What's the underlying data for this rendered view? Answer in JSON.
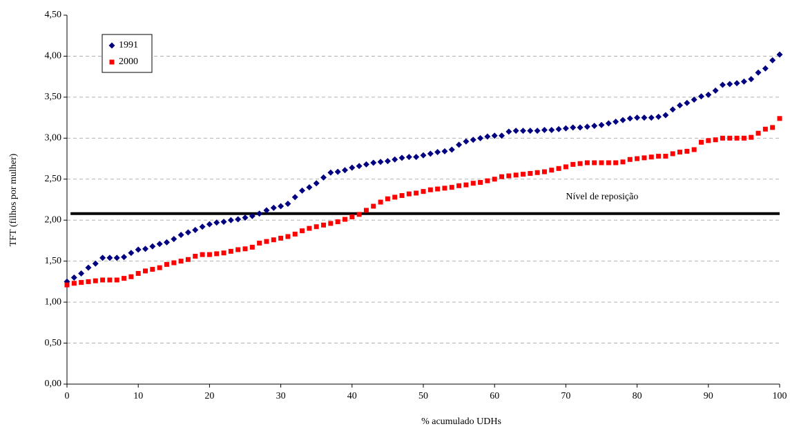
{
  "chart_data": {
    "type": "scatter",
    "xlabel": "% acumulado UDHs",
    "ylabel": "TFT (filhos por mulher)",
    "xlim": [
      0,
      100
    ],
    "xticks": [
      0,
      10,
      20,
      30,
      40,
      50,
      60,
      70,
      80,
      90,
      100
    ],
    "ylim": [
      0,
      4.5
    ],
    "yticks": [
      {
        "value": 0,
        "label": "0,00"
      },
      {
        "value": 0.5,
        "label": "0,50"
      },
      {
        "value": 1,
        "label": "1,00"
      },
      {
        "value": 1.5,
        "label": "1,50"
      },
      {
        "value": 2,
        "label": "2,00"
      },
      {
        "value": 2.5,
        "label": "2,50"
      },
      {
        "value": 3,
        "label": "3,00"
      },
      {
        "value": 3.5,
        "label": "3,50"
      },
      {
        "value": 4,
        "label": "4,00"
      },
      {
        "value": 4.5,
        "label": "4,50"
      }
    ],
    "grid": true,
    "legend": "upper left",
    "x": [
      0,
      1,
      2,
      3,
      4,
      5,
      6,
      7,
      8,
      9,
      10,
      11,
      12,
      13,
      14,
      15,
      16,
      17,
      18,
      19,
      20,
      21,
      22,
      23,
      24,
      25,
      26,
      27,
      28,
      29,
      30,
      31,
      32,
      33,
      34,
      35,
      36,
      37,
      38,
      39,
      40,
      41,
      42,
      43,
      44,
      45,
      46,
      47,
      48,
      49,
      50,
      51,
      52,
      53,
      54,
      55,
      56,
      57,
      58,
      59,
      60,
      61,
      62,
      63,
      64,
      65,
      66,
      67,
      68,
      69,
      70,
      71,
      72,
      73,
      74,
      75,
      76,
      77,
      78,
      79,
      80,
      81,
      82,
      83,
      84,
      85,
      86,
      87,
      88,
      89,
      90,
      91,
      92,
      93,
      94,
      95,
      96,
      97,
      98,
      99,
      100
    ],
    "series": [
      {
        "name": "1991",
        "color": "#000080",
        "marker": "diamond",
        "values": [
          1.25,
          1.3,
          1.35,
          1.42,
          1.47,
          1.54,
          1.54,
          1.54,
          1.55,
          1.6,
          1.64,
          1.65,
          1.68,
          1.71,
          1.73,
          1.77,
          1.82,
          1.85,
          1.88,
          1.92,
          1.95,
          1.97,
          1.98,
          2.0,
          2.01,
          2.03,
          2.05,
          2.08,
          2.12,
          2.15,
          2.17,
          2.2,
          2.28,
          2.36,
          2.4,
          2.45,
          2.52,
          2.58,
          2.59,
          2.61,
          2.64,
          2.66,
          2.68,
          2.7,
          2.71,
          2.72,
          2.74,
          2.76,
          2.77,
          2.77,
          2.79,
          2.81,
          2.83,
          2.84,
          2.86,
          2.92,
          2.96,
          2.98,
          3.0,
          3.02,
          3.03,
          3.03,
          3.08,
          3.09,
          3.09,
          3.09,
          3.09,
          3.1,
          3.1,
          3.11,
          3.12,
          3.13,
          3.13,
          3.14,
          3.15,
          3.16,
          3.18,
          3.2,
          3.22,
          3.24,
          3.25,
          3.25,
          3.25,
          3.26,
          3.28,
          3.35,
          3.4,
          3.43,
          3.47,
          3.51,
          3.53,
          3.58,
          3.65,
          3.66,
          3.67,
          3.69,
          3.72,
          3.8,
          3.85,
          3.95,
          4.02
        ]
      },
      {
        "name": "2000",
        "color": "#ff0000",
        "marker": "square",
        "values": [
          1.21,
          1.23,
          1.24,
          1.25,
          1.26,
          1.27,
          1.27,
          1.27,
          1.29,
          1.31,
          1.35,
          1.38,
          1.4,
          1.42,
          1.46,
          1.48,
          1.5,
          1.52,
          1.56,
          1.58,
          1.58,
          1.59,
          1.6,
          1.62,
          1.64,
          1.65,
          1.67,
          1.72,
          1.74,
          1.76,
          1.78,
          1.8,
          1.83,
          1.87,
          1.9,
          1.92,
          1.94,
          1.96,
          1.98,
          2.01,
          2.04,
          2.07,
          2.12,
          2.17,
          2.22,
          2.26,
          2.28,
          2.3,
          2.32,
          2.33,
          2.35,
          2.37,
          2.38,
          2.39,
          2.4,
          2.42,
          2.43,
          2.45,
          2.46,
          2.48,
          2.5,
          2.53,
          2.54,
          2.55,
          2.56,
          2.57,
          2.58,
          2.59,
          2.61,
          2.63,
          2.65,
          2.68,
          2.69,
          2.7,
          2.7,
          2.7,
          2.7,
          2.7,
          2.71,
          2.74,
          2.75,
          2.76,
          2.77,
          2.78,
          2.78,
          2.81,
          2.83,
          2.84,
          2.86,
          2.95,
          2.97,
          2.98,
          3.0,
          3.0,
          3.0,
          3.0,
          3.01,
          3.06,
          3.11,
          3.13,
          3.24
        ]
      }
    ],
    "reference_line": {
      "y": 2.08,
      "x": [
        0.5,
        100
      ],
      "label": "Nível de reposição",
      "color": "#000000"
    }
  }
}
